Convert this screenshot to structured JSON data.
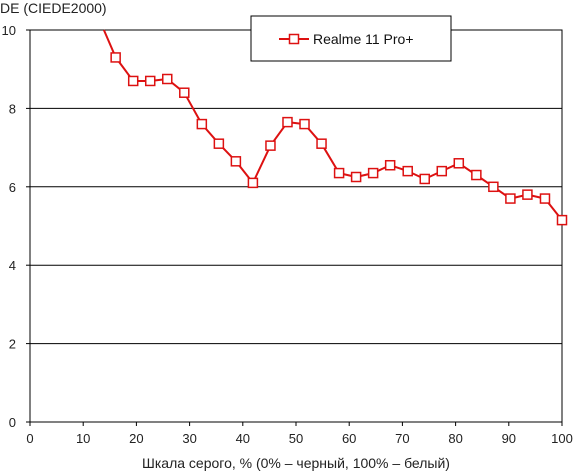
{
  "chart_data": {
    "type": "line",
    "ylabel": "DE (CIEDE2000)",
    "xlabel": "Шкала серого, % (0% – черный, 100% – белый)",
    "xlim": [
      0,
      100
    ],
    "ylim": [
      0,
      10
    ],
    "xticks": [
      "0",
      "10",
      "20",
      "30",
      "40",
      "50",
      "60",
      "70",
      "80",
      "90",
      "100"
    ],
    "yticks": [
      "0",
      "2",
      "4",
      "6",
      "8",
      "10"
    ],
    "grid": "horizontal",
    "legend_position": "top-right",
    "series": [
      {
        "name": "Realme 11 Pro+",
        "color": "#dd1111",
        "marker": "open-square",
        "x": [
          13.9,
          16.1,
          19.4,
          22.6,
          25.8,
          29.0,
          32.3,
          35.5,
          38.7,
          41.9,
          45.2,
          48.4,
          51.6,
          54.8,
          58.1,
          61.3,
          64.5,
          67.7,
          71.0,
          74.2,
          77.4,
          80.6,
          83.9,
          87.1,
          90.3,
          93.5,
          96.8,
          100.0
        ],
        "y": [
          10.0,
          9.3,
          8.7,
          8.7,
          8.75,
          8.4,
          7.6,
          7.1,
          6.65,
          6.1,
          7.05,
          7.65,
          7.6,
          7.1,
          6.35,
          6.25,
          6.35,
          6.55,
          6.4,
          6.2,
          6.4,
          6.6,
          6.3,
          6.0,
          5.7,
          5.8,
          5.7,
          5.15
        ],
        "markers_from_index": 1
      }
    ]
  }
}
